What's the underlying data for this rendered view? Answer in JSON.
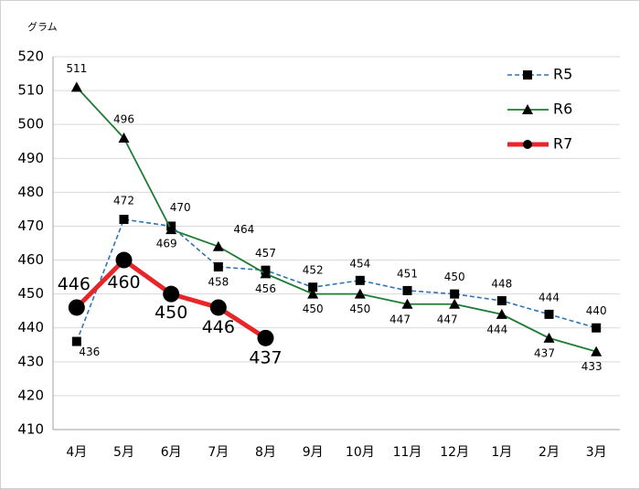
{
  "chart_data": {
    "type": "line",
    "y_label": "グラム",
    "categories": [
      "4月",
      "5月",
      "6月",
      "7月",
      "8月",
      "9月",
      "10月",
      "11月",
      "12月",
      "1月",
      "2月",
      "3月"
    ],
    "series": [
      {
        "name": "R5",
        "color": "#2e75b6",
        "line_style": "dashed",
        "marker": "square",
        "values": [
          436,
          472,
          470,
          458,
          457,
          452,
          454,
          451,
          450,
          448,
          444,
          440
        ]
      },
      {
        "name": "R6",
        "color": "#1e7b34",
        "line_style": "solid",
        "marker": "triangle",
        "values": [
          511,
          496,
          469,
          464,
          456,
          450,
          450,
          447,
          447,
          444,
          437,
          433
        ]
      },
      {
        "name": "R7",
        "color": "#e8262a",
        "line_style": "thick",
        "marker": "circle",
        "values": [
          446,
          460,
          450,
          446,
          437,
          null,
          null,
          null,
          null,
          null,
          null,
          null
        ]
      }
    ],
    "ylim": [
      410,
      520
    ],
    "yticks": [
      410,
      420,
      430,
      440,
      450,
      460,
      470,
      480,
      490,
      500,
      510,
      520
    ],
    "grid": true,
    "legend": "upper right"
  }
}
